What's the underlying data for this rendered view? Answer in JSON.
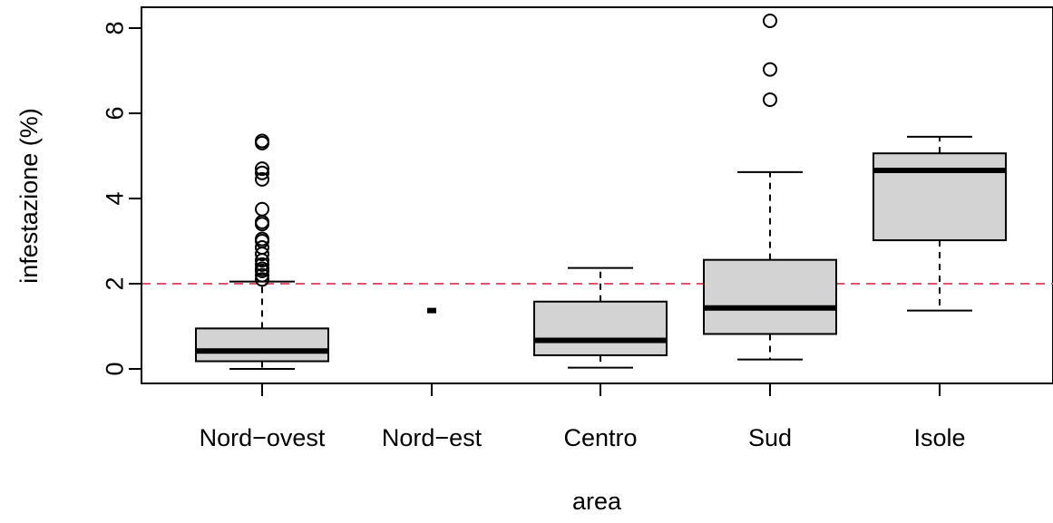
{
  "chart_data": {
    "type": "boxplot",
    "xlabel": "area",
    "ylabel": "infestazione (%)",
    "ylim": [
      -0.35,
      8.5
    ],
    "y_ticks": [
      0,
      2,
      4,
      6,
      8
    ],
    "y_tick_labels": [
      "0",
      "2",
      "4",
      "6",
      "8"
    ],
    "reference_line": {
      "y": 2,
      "color": "#df536b",
      "style": "dashed"
    },
    "box_fill": "#d3d3d3",
    "categories": [
      "Nord−ovest",
      "Nord−est",
      "Centro",
      "Sud",
      "Isole"
    ],
    "boxes": [
      {
        "category": "Nord−ovest",
        "whisker_low": 0.0,
        "q1": 0.18,
        "median": 0.42,
        "q3": 0.95,
        "whisker_high": 2.05,
        "outliers": [
          2.1,
          2.2,
          2.3,
          2.35,
          2.45,
          2.55,
          2.7,
          2.85,
          3.0,
          3.05,
          3.4,
          3.45,
          3.75,
          4.45,
          4.6,
          4.7,
          5.3,
          5.35
        ]
      },
      {
        "category": "Nord−est",
        "whisker_low": 1.37,
        "q1": 1.37,
        "median": 1.37,
        "q3": 1.37,
        "whisker_high": 1.37,
        "outliers": []
      },
      {
        "category": "Centro",
        "whisker_low": 0.03,
        "q1": 0.32,
        "median": 0.67,
        "q3": 1.58,
        "whisker_high": 2.37,
        "outliers": []
      },
      {
        "category": "Sud",
        "whisker_low": 0.22,
        "q1": 0.82,
        "median": 1.43,
        "q3": 2.56,
        "whisker_high": 4.62,
        "outliers": [
          6.32,
          7.03,
          8.17
        ]
      },
      {
        "category": "Isole",
        "whisker_low": 1.37,
        "q1": 3.02,
        "median": 4.66,
        "q3": 5.06,
        "whisker_high": 5.45,
        "outliers": []
      }
    ]
  }
}
